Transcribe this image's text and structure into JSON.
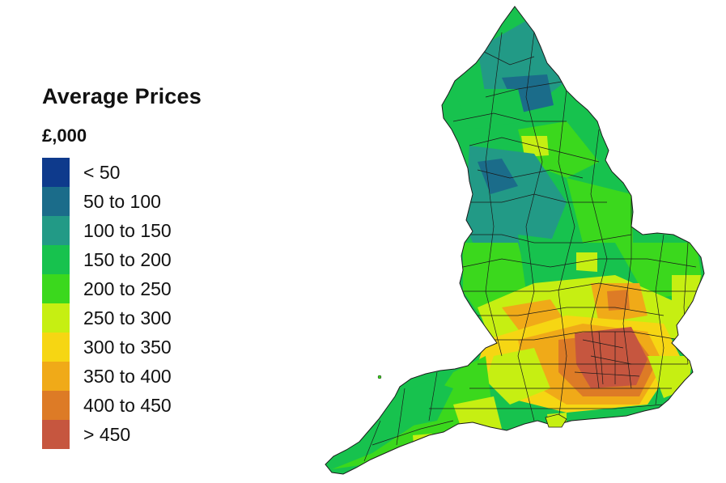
{
  "legend": {
    "title": "Average Prices",
    "unit": "£,000",
    "items": [
      {
        "label": "< 50",
        "color": "#0e3a8c"
      },
      {
        "label": "50 to 100",
        "color": "#1b6c8a"
      },
      {
        "label": "100 to 150",
        "color": "#229a86"
      },
      {
        "label": "150 to 200",
        "color": "#17c24e"
      },
      {
        "label": "200 to 250",
        "color": "#3bd81d"
      },
      {
        "label": "250 to 300",
        "color": "#c6ef12"
      },
      {
        "label": "300 to 350",
        "color": "#f6d613"
      },
      {
        "label": "350 to 400",
        "color": "#f0aa18"
      },
      {
        "label": "400 to 450",
        "color": "#dd7b26"
      },
      {
        "label": "> 450",
        "color": "#c6563f"
      }
    ]
  },
  "map": {
    "region": "England",
    "boundary_color": "#1a1a1a"
  }
}
